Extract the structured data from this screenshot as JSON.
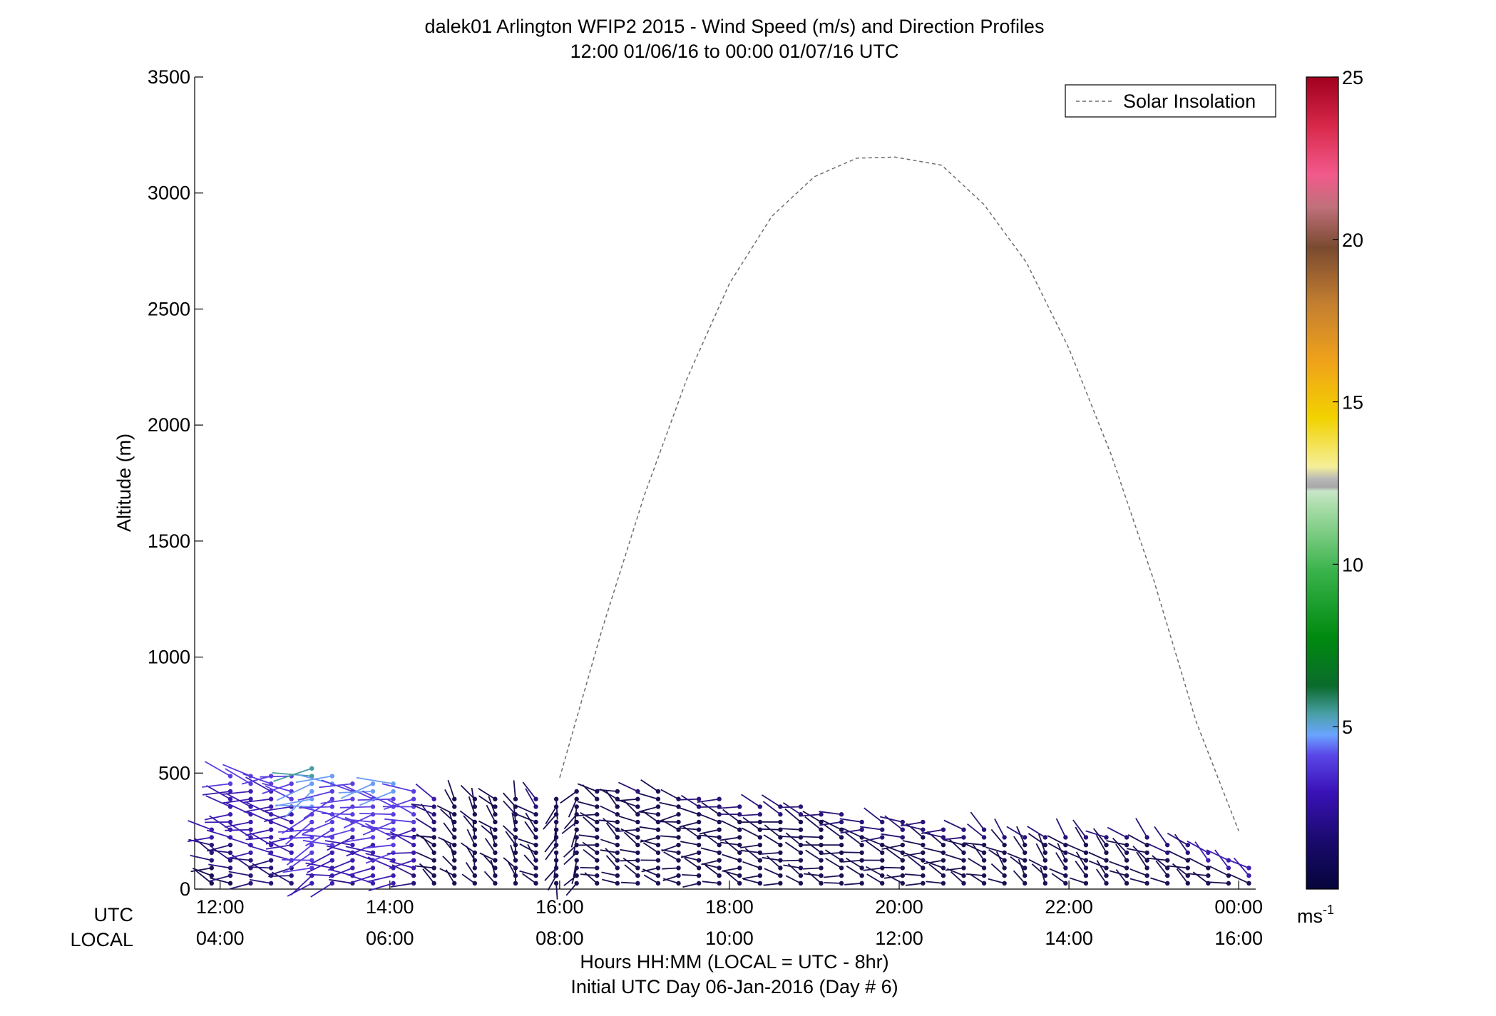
{
  "title": "dalek01 Arlington WFIP2 2015 - Wind Speed (m/s) and Direction Profiles",
  "subtitle": "12:00 01/06/16 to 00:00 01/07/16  UTC",
  "ylabel": "Altitude (m)",
  "xlabel": "Hours HH:MM  (LOCAL = UTC - 8hr)",
  "xlabel2": "Initial UTC Day 06-Jan-2016 (Day # 6)",
  "utc_label": "UTC",
  "local_label": "LOCAL",
  "colorbar_unit": "ms",
  "colorbar_unit_exp": "-1",
  "legend": {
    "label": "Solar Insolation",
    "position": "top-right"
  },
  "colors": {
    "solar_line": "#6e6e6e",
    "axes": "#000000",
    "barb_low": "#1a0f4d",
    "barb_mid": "#4b1fc4"
  },
  "chart_data": {
    "type": "wind-profile",
    "xlim": [
      11.7,
      24.2
    ],
    "ylim": [
      0,
      3500
    ],
    "yticks": [
      0,
      500,
      1000,
      1500,
      2000,
      2500,
      3000,
      3500
    ],
    "ytick_labels": [
      "0",
      "500",
      "1000",
      "1500",
      "2000",
      "2500",
      "3000",
      "3500"
    ],
    "xticks": [
      12,
      14,
      16,
      18,
      20,
      22,
      24
    ],
    "xtick_utc_labels": [
      "12:00",
      "14:00",
      "16:00",
      "18:00",
      "20:00",
      "22:00",
      "00:00"
    ],
    "xtick_local_labels": [
      "04:00",
      "06:00",
      "08:00",
      "10:00",
      "12:00",
      "14:00",
      "16:00"
    ],
    "colorbar": {
      "range": [
        0,
        25
      ],
      "ticks": [
        5,
        10,
        15,
        20,
        25
      ],
      "tick_labels": [
        "5",
        "10",
        "15",
        "20",
        "25"
      ]
    },
    "solar_insolation": {
      "x": [
        16.0,
        16.5,
        17.0,
        17.5,
        18.0,
        18.5,
        19.0,
        19.5,
        19.95,
        20.5,
        21.0,
        21.5,
        22.0,
        22.5,
        23.0,
        23.5,
        24.0
      ],
      "y": [
        480,
        1120,
        1700,
        2200,
        2610,
        2900,
        3070,
        3150,
        3155,
        3120,
        2950,
        2700,
        2330,
        1870,
        1330,
        720,
        250
      ]
    },
    "profiles": [
      {
        "time": 11.9,
        "top": 280,
        "speed": 2.5,
        "dir": 285
      },
      {
        "time": 12.12,
        "top": 490,
        "speed": 3.0,
        "dir": 280
      },
      {
        "time": 12.36,
        "top": 500,
        "speed": 3.2,
        "dir": 280
      },
      {
        "time": 12.6,
        "top": 495,
        "speed": 3.2,
        "dir": 278
      },
      {
        "time": 12.84,
        "top": 500,
        "speed": 3.4,
        "dir": 275
      },
      {
        "time": 13.08,
        "top": 530,
        "speed": 4.8,
        "dir": 250
      },
      {
        "time": 13.32,
        "top": 490,
        "speed": 4.2,
        "dir": 260
      },
      {
        "time": 13.56,
        "top": 480,
        "speed": 3.8,
        "dir": 265
      },
      {
        "time": 13.8,
        "top": 470,
        "speed": 4.0,
        "dir": 270
      },
      {
        "time": 14.04,
        "top": 460,
        "speed": 4.3,
        "dir": 272
      },
      {
        "time": 14.28,
        "top": 450,
        "speed": 3.6,
        "dir": 275
      },
      {
        "time": 14.52,
        "top": 420,
        "speed": 2.2,
        "dir": 300
      },
      {
        "time": 14.76,
        "top": 410,
        "speed": 1.6,
        "dir": 320
      },
      {
        "time": 15.0,
        "top": 400,
        "speed": 1.5,
        "dir": 330
      },
      {
        "time": 15.24,
        "top": 410,
        "speed": 1.6,
        "dir": 320
      },
      {
        "time": 15.48,
        "top": 400,
        "speed": 1.4,
        "dir": 335
      },
      {
        "time": 15.72,
        "top": 400,
        "speed": 1.8,
        "dir": 310
      },
      {
        "time": 15.96,
        "top": 410,
        "speed": 1.7,
        "dir": 200
      },
      {
        "time": 16.2,
        "top": 430,
        "speed": 1.6,
        "dir": 210
      },
      {
        "time": 16.44,
        "top": 440,
        "speed": 1.7,
        "dir": 290
      },
      {
        "time": 16.68,
        "top": 430,
        "speed": 1.6,
        "dir": 300
      },
      {
        "time": 16.92,
        "top": 450,
        "speed": 1.8,
        "dir": 290
      },
      {
        "time": 17.16,
        "top": 430,
        "speed": 1.7,
        "dir": 280
      },
      {
        "time": 17.4,
        "top": 410,
        "speed": 1.6,
        "dir": 275
      },
      {
        "time": 17.64,
        "top": 400,
        "speed": 1.8,
        "dir": 280
      },
      {
        "time": 17.88,
        "top": 390,
        "speed": 1.9,
        "dir": 282
      },
      {
        "time": 18.12,
        "top": 380,
        "speed": 1.9,
        "dir": 285
      },
      {
        "time": 18.36,
        "top": 380,
        "speed": 2.0,
        "dir": 285
      },
      {
        "time": 18.6,
        "top": 370,
        "speed": 1.9,
        "dir": 288
      },
      {
        "time": 18.84,
        "top": 360,
        "speed": 1.8,
        "dir": 290
      },
      {
        "time": 19.08,
        "top": 350,
        "speed": 1.9,
        "dir": 288
      },
      {
        "time": 19.32,
        "top": 330,
        "speed": 2.0,
        "dir": 285
      },
      {
        "time": 19.56,
        "top": 320,
        "speed": 2.0,
        "dir": 285
      },
      {
        "time": 19.8,
        "top": 310,
        "speed": 2.1,
        "dir": 283
      },
      {
        "time": 20.04,
        "top": 300,
        "speed": 2.1,
        "dir": 283
      },
      {
        "time": 20.28,
        "top": 290,
        "speed": 2.0,
        "dir": 285
      },
      {
        "time": 20.52,
        "top": 280,
        "speed": 2.0,
        "dir": 285
      },
      {
        "time": 20.76,
        "top": 270,
        "speed": 1.9,
        "dir": 288
      },
      {
        "time": 21.0,
        "top": 260,
        "speed": 1.9,
        "dir": 300
      },
      {
        "time": 21.24,
        "top": 250,
        "speed": 1.8,
        "dir": 310
      },
      {
        "time": 21.48,
        "top": 250,
        "speed": 1.8,
        "dir": 315
      },
      {
        "time": 21.72,
        "top": 250,
        "speed": 1.8,
        "dir": 320
      },
      {
        "time": 21.96,
        "top": 250,
        "speed": 1.8,
        "dir": 315
      },
      {
        "time": 22.2,
        "top": 250,
        "speed": 1.9,
        "dir": 310
      },
      {
        "time": 22.44,
        "top": 250,
        "speed": 1.9,
        "dir": 310
      },
      {
        "time": 22.68,
        "top": 250,
        "speed": 1.9,
        "dir": 305
      },
      {
        "time": 22.92,
        "top": 250,
        "speed": 2.0,
        "dir": 305
      },
      {
        "time": 23.16,
        "top": 200,
        "speed": 2.0,
        "dir": 300
      },
      {
        "time": 23.4,
        "top": 190,
        "speed": 2.1,
        "dir": 300
      },
      {
        "time": 23.64,
        "top": 160,
        "speed": 2.2,
        "dir": 300
      },
      {
        "time": 23.88,
        "top": 150,
        "speed": 2.4,
        "dir": 298
      },
      {
        "time": 24.12,
        "top": 100,
        "speed": 2.5,
        "dir": 295
      }
    ]
  }
}
